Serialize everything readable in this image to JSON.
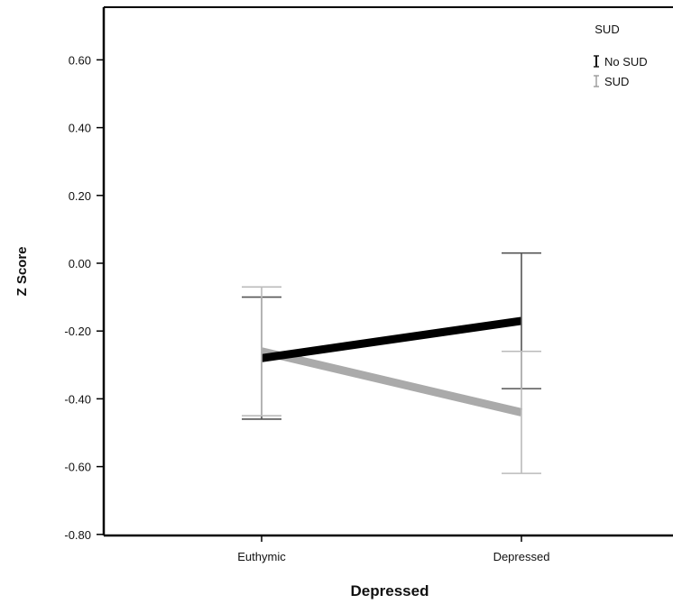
{
  "chart_data": {
    "type": "line",
    "xlabel": "Depressed",
    "ylabel": "Z Score",
    "categories": [
      "Euthymic",
      "Depressed"
    ],
    "ylim": [
      -0.8,
      0.75
    ],
    "yticks": [
      "0.60",
      "0.40",
      "0.20",
      "0.00",
      "-0.20",
      "-0.40",
      "-0.60",
      "-0.80"
    ],
    "ytick_values": [
      0.6,
      0.4,
      0.2,
      0.0,
      -0.2,
      -0.4,
      -0.6,
      -0.8
    ],
    "grid": false,
    "legend": {
      "title": "SUD",
      "placement": "top-right"
    },
    "series": [
      {
        "name": "No SUD",
        "color": "#000000",
        "values": [
          -0.28,
          -0.17
        ],
        "error_low": [
          -0.46,
          -0.37
        ],
        "error_high": [
          -0.1,
          0.03
        ]
      },
      {
        "name": "SUD",
        "color": "#aaaaaa",
        "values": [
          -0.26,
          -0.44
        ],
        "error_low": [
          -0.45,
          -0.62
        ],
        "error_high": [
          -0.07,
          -0.26
        ]
      }
    ]
  }
}
